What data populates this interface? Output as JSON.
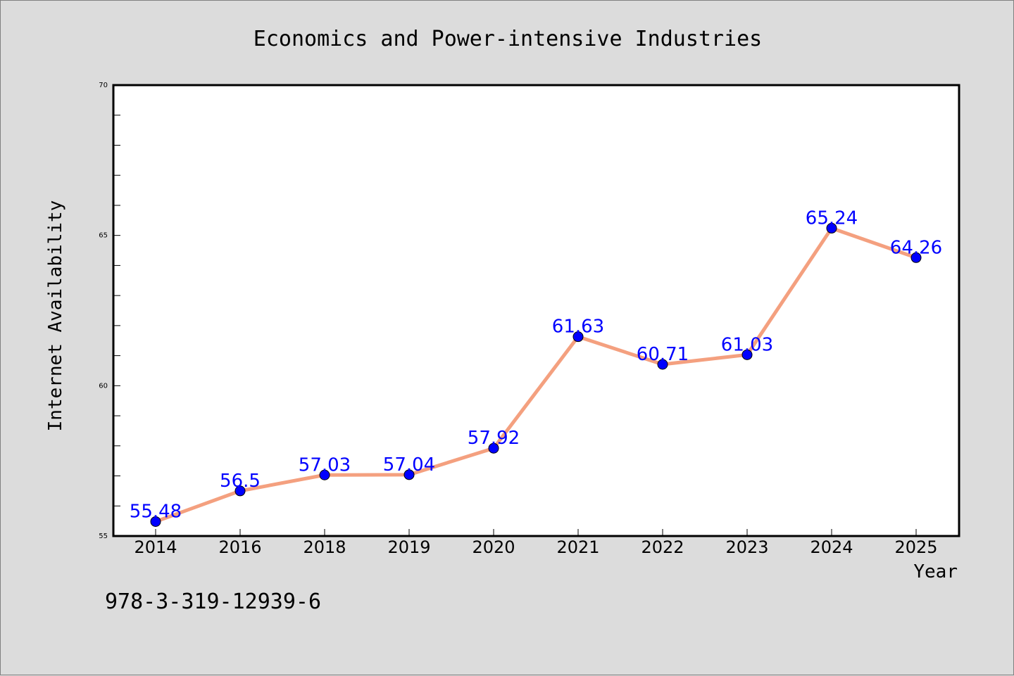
{
  "footnote": "978-3-319-12939-6",
  "colors": {
    "background": "#dcdcdc",
    "plot_background": "#ffffff",
    "line": "#f4a07f",
    "marker": "#0000ff",
    "data_label": "#0000ff"
  },
  "chart_data": {
    "type": "line",
    "title": "Economics and Power-intensive Industries",
    "xlabel": "Year",
    "ylabel": "Internet Availability",
    "categories": [
      "2014",
      "2016",
      "2018",
      "2019",
      "2020",
      "2021",
      "2022",
      "2023",
      "2024",
      "2025"
    ],
    "series": [
      {
        "values": [
          55.48,
          56.5,
          57.03,
          57.04,
          57.92,
          61.63,
          60.71,
          61.03,
          65.24,
          64.26
        ],
        "labels": [
          "55.48",
          "56.5",
          "57.03",
          "57.04",
          "57.92",
          "61.63",
          "60.71",
          "61.03",
          "65.24",
          "64.26"
        ]
      }
    ],
    "ylim": [
      55,
      70
    ],
    "yticks": [
      "55",
      "60",
      "65",
      "70"
    ],
    "yticks_minor_step": 1,
    "grid": false,
    "legend": "none"
  }
}
